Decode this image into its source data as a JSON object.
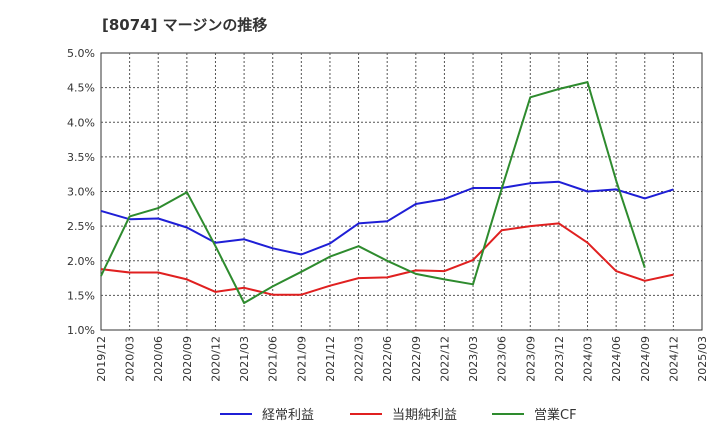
{
  "chart_data": {
    "type": "line",
    "title": "[8074]  マージンの推移",
    "xlabel": "",
    "ylabel": "",
    "x": [
      "2019/12",
      "2020/03",
      "2020/06",
      "2020/09",
      "2020/12",
      "2021/03",
      "2021/06",
      "2021/09",
      "2021/12",
      "2022/03",
      "2022/06",
      "2022/09",
      "2022/12",
      "2023/03",
      "2023/06",
      "2023/09",
      "2023/12",
      "2024/03",
      "2024/06",
      "2024/09",
      "2024/12",
      "2025/03"
    ],
    "y_ticks": [
      "1.0%",
      "1.5%",
      "2.0%",
      "2.5%",
      "3.0%",
      "3.5%",
      "4.0%",
      "4.5%",
      "5.0%"
    ],
    "ylim": [
      1.0,
      5.0
    ],
    "grid": true,
    "legend_position": "bottom",
    "series": [
      {
        "name": "経常利益",
        "color": "#1f1fd6",
        "values": [
          2.72,
          2.6,
          2.61,
          2.48,
          2.26,
          2.31,
          2.18,
          2.09,
          2.25,
          2.54,
          2.57,
          2.82,
          2.89,
          3.05,
          3.05,
          3.12,
          3.14,
          3.0,
          3.03,
          2.9,
          3.03,
          null
        ]
      },
      {
        "name": "当期純利益",
        "color": "#e02020",
        "values": [
          1.88,
          1.83,
          1.83,
          1.73,
          1.55,
          1.61,
          1.51,
          1.51,
          1.64,
          1.75,
          1.76,
          1.86,
          1.85,
          2.01,
          2.44,
          2.5,
          2.54,
          2.26,
          1.85,
          1.71,
          1.8,
          null
        ]
      },
      {
        "name": "営業CF",
        "color": "#2e8b2e",
        "values": [
          1.78,
          2.64,
          2.76,
          2.99,
          2.21,
          1.39,
          1.63,
          1.84,
          2.06,
          2.21,
          2.0,
          1.81,
          1.73,
          1.66,
          3.04,
          4.36,
          4.48,
          4.58,
          3.16,
          1.9,
          null,
          null
        ]
      }
    ]
  }
}
